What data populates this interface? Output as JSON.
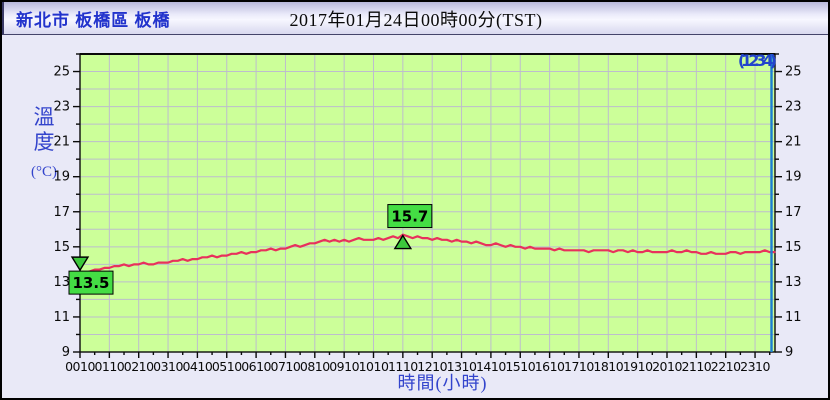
{
  "window": {
    "station_name": "新北市 板橋區 板橋",
    "datetime_title": "2017年01月24日00時00分(TST)"
  },
  "corner_label": "(1234)",
  "axes": {
    "y_axis_label": "溫度",
    "y_axis_unit": "(°C)",
    "x_axis_label": "時間(小時)"
  },
  "chart_data": {
    "type": "line",
    "title": "2017年01月24日00時00分(TST)",
    "xlabel": "時間(小時)",
    "ylabel": "溫度(°C)",
    "ylim": [
      9,
      26
    ],
    "y_tick_label_values": [
      9,
      11,
      13,
      15,
      17,
      19,
      21,
      23,
      25
    ],
    "grid": "on",
    "x_start": "00:10",
    "x_step_minutes": 10,
    "x_tick_labels": [
      "0010",
      "0110",
      "0210",
      "0310",
      "0410",
      "0510",
      "0610",
      "0710",
      "0810",
      "0910",
      "1010",
      "1110",
      "1210",
      "1310",
      "1410",
      "1510",
      "1610",
      "1710",
      "1810",
      "1910",
      "2010",
      "2110",
      "2210",
      "2310"
    ],
    "temps_10min": [
      13.5,
      13.5,
      13.6,
      13.7,
      13.7,
      13.8,
      13.8,
      13.9,
      13.9,
      14.0,
      13.9,
      14.0,
      14.0,
      14.1,
      14.0,
      14.0,
      14.1,
      14.1,
      14.1,
      14.2,
      14.2,
      14.3,
      14.2,
      14.3,
      14.3,
      14.4,
      14.4,
      14.5,
      14.4,
      14.5,
      14.5,
      14.6,
      14.6,
      14.7,
      14.6,
      14.7,
      14.7,
      14.8,
      14.8,
      14.9,
      14.8,
      14.9,
      14.9,
      15.0,
      15.1,
      15.0,
      15.1,
      15.2,
      15.2,
      15.3,
      15.4,
      15.3,
      15.4,
      15.3,
      15.4,
      15.3,
      15.4,
      15.5,
      15.4,
      15.4,
      15.4,
      15.5,
      15.4,
      15.5,
      15.6,
      15.5,
      15.7,
      15.6,
      15.5,
      15.6,
      15.5,
      15.5,
      15.4,
      15.5,
      15.4,
      15.4,
      15.3,
      15.4,
      15.3,
      15.3,
      15.2,
      15.3,
      15.2,
      15.1,
      15.1,
      15.2,
      15.1,
      15.0,
      15.1,
      15.0,
      15.0,
      14.9,
      15.0,
      14.9,
      14.9,
      14.9,
      14.9,
      14.8,
      14.9,
      14.8,
      14.8,
      14.8,
      14.8,
      14.8,
      14.7,
      14.8,
      14.8,
      14.8,
      14.8,
      14.7,
      14.8,
      14.8,
      14.7,
      14.8,
      14.7,
      14.7,
      14.8,
      14.7,
      14.7,
      14.7,
      14.7,
      14.8,
      14.7,
      14.7,
      14.8,
      14.7,
      14.7,
      14.6,
      14.6,
      14.7,
      14.6,
      14.6,
      14.6,
      14.7,
      14.7,
      14.6,
      14.7,
      14.7,
      14.7,
      14.7,
      14.8,
      14.7,
      14.7
    ],
    "annotations": {
      "min": {
        "label": "13.5",
        "value": 13.5,
        "index": 0
      },
      "max": {
        "label": "15.7",
        "value": 15.7,
        "index": 66
      }
    },
    "colors": {
      "plot_bg": "#ccff99",
      "grid": "#bdbdcd",
      "line": "#e8315c",
      "axis": "#0a0a0a",
      "tick_text": "#0a0a0a",
      "annotation_bg": "#44dd44",
      "marker_fill": "#3cc83c",
      "cursor_line": "#1b7ed2",
      "corner_text": "#2244cc",
      "axis_label_text": "#3344cc"
    }
  }
}
